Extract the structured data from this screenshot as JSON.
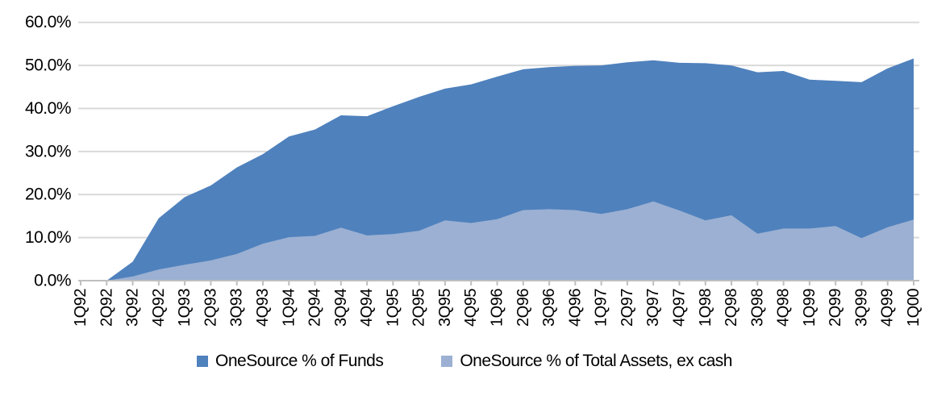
{
  "chart_data": {
    "type": "area",
    "title": "",
    "xlabel": "",
    "ylabel": "",
    "ylim": [
      0,
      60
    ],
    "ytick_step": 10,
    "ytick_labels": [
      "0.0%",
      "10.0%",
      "20.0%",
      "30.0%",
      "40.0%",
      "50.0%",
      "60.0%"
    ],
    "grid": "horizontal-on",
    "legend_position": "bottom",
    "areas_overlap": true,
    "categories": [
      "1Q92",
      "2Q92",
      "3Q92",
      "4Q92",
      "1Q93",
      "2Q93",
      "3Q93",
      "4Q93",
      "1Q94",
      "2Q94",
      "3Q94",
      "4Q94",
      "1Q95",
      "2Q95",
      "3Q95",
      "4Q95",
      "1Q96",
      "2Q96",
      "3Q96",
      "4Q96",
      "1Q97",
      "2Q97",
      "3Q97",
      "4Q97",
      "1Q98",
      "2Q98",
      "3Q98",
      "4Q98",
      "1Q99",
      "2Q99",
      "3Q99",
      "4Q99",
      "1Q00"
    ],
    "series": [
      {
        "name": "OneSource % of Funds",
        "color": "#4f81bd",
        "values": [
          0.0,
          0.0,
          4.4,
          14.5,
          19.4,
          22.1,
          26.3,
          29.4,
          33.5,
          35.1,
          38.4,
          38.2,
          40.5,
          42.7,
          44.6,
          45.6,
          47.4,
          49.1,
          49.6,
          49.9,
          50.0,
          50.7,
          51.2,
          50.6,
          50.5,
          50.0,
          48.4,
          48.7,
          46.7,
          46.4,
          46.1,
          49.3,
          51.6
        ]
      },
      {
        "name": "OneSource % of Total Assets, ex cash",
        "color": "#9bb0d2",
        "values": [
          0.0,
          0.0,
          1.0,
          2.6,
          3.7,
          4.7,
          6.2,
          8.6,
          10.1,
          10.4,
          12.3,
          10.5,
          10.8,
          11.6,
          14.0,
          13.4,
          14.3,
          16.4,
          16.6,
          16.4,
          15.5,
          16.6,
          18.4,
          16.3,
          14.0,
          15.2,
          10.9,
          12.1,
          12.1,
          12.7,
          9.9,
          12.4,
          14.2
        ]
      }
    ]
  },
  "colors": {
    "gridline": "#d9d9d9",
    "axis_line": "#bfbfbf",
    "tick_mark": "#bfbfbf",
    "label_text": "#000000",
    "background": "#ffffff"
  },
  "legend": {
    "items": [
      {
        "label": "OneSource % of Funds",
        "color": "#4f81bd"
      },
      {
        "label": "OneSource % of Total Assets, ex cash",
        "color": "#9bb0d2"
      }
    ]
  }
}
